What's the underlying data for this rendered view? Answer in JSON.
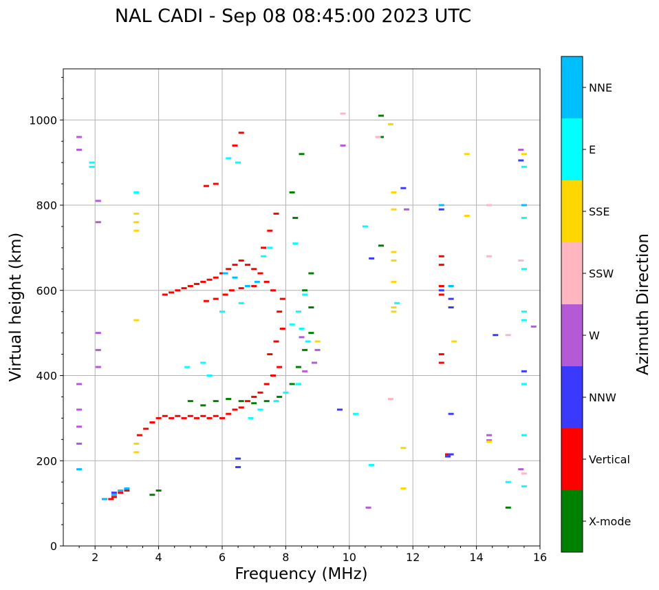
{
  "chart_data": {
    "type": "scatter",
    "title": "NAL CADI - Sep 08 08:45:00 2023 UTC",
    "xlabel": "Frequency (MHz)",
    "ylabel": "Virtual height (km)",
    "xlim": [
      1,
      16
    ],
    "ylim": [
      0,
      1120
    ],
    "xticks": [
      2,
      4,
      6,
      8,
      10,
      12,
      14,
      16
    ],
    "yticks": [
      0,
      200,
      400,
      600,
      800,
      1000
    ],
    "xtick_labels": [
      "2",
      "4",
      "6",
      "8",
      "10",
      "12",
      "14",
      "16"
    ],
    "ytick_labels": [
      "0",
      "200",
      "400",
      "600",
      "800",
      "1000"
    ],
    "grid": true,
    "colorbar": {
      "label": "Azimuth Direction",
      "position": "right",
      "categories": [
        {
          "name": "X-mode",
          "color": "#008000"
        },
        {
          "name": "Vertical",
          "color": "#ff0000"
        },
        {
          "name": "NNW",
          "color": "#3a3aff"
        },
        {
          "name": "W",
          "color": "#b45ad6"
        },
        {
          "name": "SSW",
          "color": "#ffb6c1"
        },
        {
          "name": "SSE",
          "color": "#ffd700"
        },
        {
          "name": "E",
          "color": "#00ffff"
        },
        {
          "name": "NNE",
          "color": "#00bfff"
        }
      ]
    },
    "series": [
      {
        "name": "Vertical",
        "color": "#ff0000",
        "points": [
          [
            2.3,
            110
          ],
          [
            2.5,
            110
          ],
          [
            2.6,
            115
          ],
          [
            2.8,
            125
          ],
          [
            3.0,
            130
          ],
          [
            3.4,
            260
          ],
          [
            3.6,
            275
          ],
          [
            3.8,
            290
          ],
          [
            4.0,
            300
          ],
          [
            4.2,
            305
          ],
          [
            4.4,
            300
          ],
          [
            4.6,
            305
          ],
          [
            4.8,
            300
          ],
          [
            5.0,
            305
          ],
          [
            5.2,
            300
          ],
          [
            5.4,
            305
          ],
          [
            5.6,
            300
          ],
          [
            5.8,
            305
          ],
          [
            6.0,
            300
          ],
          [
            6.2,
            310
          ],
          [
            6.4,
            320
          ],
          [
            6.6,
            325
          ],
          [
            6.8,
            340
          ],
          [
            7.0,
            350
          ],
          [
            7.2,
            360
          ],
          [
            7.4,
            380
          ],
          [
            7.6,
            400
          ],
          [
            7.8,
            420
          ],
          [
            7.5,
            450
          ],
          [
            7.7,
            480
          ],
          [
            7.9,
            510
          ],
          [
            7.8,
            550
          ],
          [
            7.9,
            580
          ],
          [
            7.6,
            600
          ],
          [
            7.4,
            620
          ],
          [
            7.2,
            640
          ],
          [
            7.0,
            650
          ],
          [
            6.8,
            660
          ],
          [
            6.6,
            670
          ],
          [
            6.4,
            660
          ],
          [
            6.2,
            650
          ],
          [
            6.0,
            640
          ],
          [
            5.8,
            630
          ],
          [
            5.6,
            625
          ],
          [
            5.4,
            620
          ],
          [
            5.2,
            615
          ],
          [
            5.0,
            610
          ],
          [
            4.8,
            605
          ],
          [
            4.6,
            600
          ],
          [
            4.4,
            595
          ],
          [
            4.2,
            590
          ],
          [
            5.5,
            575
          ],
          [
            5.8,
            580
          ],
          [
            6.1,
            590
          ],
          [
            6.3,
            600
          ],
          [
            6.6,
            605
          ],
          [
            7.0,
            610
          ],
          [
            7.3,
            700
          ],
          [
            7.5,
            740
          ],
          [
            7.7,
            780
          ],
          [
            6.4,
            940
          ],
          [
            6.6,
            970
          ],
          [
            5.5,
            845
          ],
          [
            5.8,
            850
          ],
          [
            12.9,
            680
          ],
          [
            12.9,
            660
          ],
          [
            12.9,
            610
          ],
          [
            12.9,
            590
          ],
          [
            12.9,
            450
          ],
          [
            12.9,
            430
          ],
          [
            13.1,
            215
          ]
        ]
      },
      {
        "name": "X-mode",
        "color": "#008000",
        "points": [
          [
            3.8,
            120
          ],
          [
            4.0,
            130
          ],
          [
            5.0,
            340
          ],
          [
            5.4,
            330
          ],
          [
            5.8,
            340
          ],
          [
            6.2,
            345
          ],
          [
            6.6,
            340
          ],
          [
            7.0,
            335
          ],
          [
            7.4,
            340
          ],
          [
            7.8,
            350
          ],
          [
            8.2,
            380
          ],
          [
            8.4,
            420
          ],
          [
            8.6,
            460
          ],
          [
            8.8,
            500
          ],
          [
            8.8,
            560
          ],
          [
            8.6,
            600
          ],
          [
            8.8,
            640
          ],
          [
            8.3,
            770
          ],
          [
            8.2,
            830
          ],
          [
            8.5,
            920
          ],
          [
            11.0,
            1010
          ],
          [
            11.0,
            960
          ],
          [
            11.0,
            705
          ],
          [
            15.0,
            90
          ]
        ]
      },
      {
        "name": "NNW",
        "color": "#3a3aff",
        "points": [
          [
            2.6,
            125
          ],
          [
            12.9,
            790
          ],
          [
            12.9,
            600
          ],
          [
            13.2,
            580
          ],
          [
            13.2,
            560
          ],
          [
            13.2,
            310
          ],
          [
            13.2,
            215
          ],
          [
            6.5,
            205
          ],
          [
            6.5,
            185
          ],
          [
            11.7,
            840
          ],
          [
            10.7,
            675
          ],
          [
            15.4,
            905
          ],
          [
            15.5,
            410
          ],
          [
            14.6,
            495
          ],
          [
            9.7,
            320
          ],
          [
            13.1,
            210
          ]
        ]
      },
      {
        "name": "W",
        "color": "#b45ad6",
        "points": [
          [
            1.5,
            380
          ],
          [
            1.5,
            320
          ],
          [
            1.5,
            280
          ],
          [
            1.5,
            240
          ],
          [
            1.5,
            960
          ],
          [
            1.5,
            930
          ],
          [
            2.1,
            810
          ],
          [
            2.1,
            760
          ],
          [
            2.1,
            500
          ],
          [
            2.1,
            460
          ],
          [
            2.1,
            420
          ],
          [
            9.0,
            460
          ],
          [
            8.9,
            430
          ],
          [
            8.6,
            410
          ],
          [
            15.4,
            930
          ],
          [
            14.4,
            260
          ],
          [
            14.4,
            248
          ],
          [
            10.6,
            90
          ],
          [
            9.8,
            940
          ],
          [
            11.8,
            790
          ],
          [
            15.4,
            180
          ],
          [
            15.8,
            515
          ],
          [
            8.5,
            490
          ]
        ]
      },
      {
        "name": "SSW",
        "color": "#ffb6c1",
        "points": [
          [
            9.8,
            1015
          ],
          [
            10.9,
            960
          ],
          [
            14.4,
            680
          ],
          [
            15.4,
            670
          ],
          [
            15.5,
            170
          ],
          [
            15.0,
            495
          ],
          [
            11.3,
            345
          ],
          [
            14.4,
            800
          ]
        ]
      },
      {
        "name": "SSE",
        "color": "#ffd700",
        "points": [
          [
            3.3,
            780
          ],
          [
            3.3,
            760
          ],
          [
            3.3,
            740
          ],
          [
            3.3,
            530
          ],
          [
            3.3,
            240
          ],
          [
            3.3,
            220
          ],
          [
            11.4,
            830
          ],
          [
            11.4,
            790
          ],
          [
            11.4,
            690
          ],
          [
            11.4,
            670
          ],
          [
            11.4,
            620
          ],
          [
            11.4,
            560
          ],
          [
            11.4,
            550
          ],
          [
            13.7,
            920
          ],
          [
            13.7,
            775
          ],
          [
            14.4,
            245
          ],
          [
            11.7,
            230
          ],
          [
            11.7,
            135
          ],
          [
            9.0,
            480
          ],
          [
            11.3,
            990
          ],
          [
            15.5,
            920
          ],
          [
            13.3,
            480
          ]
        ]
      },
      {
        "name": "E",
        "color": "#00ffff",
        "points": [
          [
            3.3,
            830
          ],
          [
            4.9,
            420
          ],
          [
            5.4,
            430
          ],
          [
            6.2,
            910
          ],
          [
            6.5,
            900
          ],
          [
            6.0,
            550
          ],
          [
            6.6,
            570
          ],
          [
            7.5,
            700
          ],
          [
            7.3,
            680
          ],
          [
            8.3,
            710
          ],
          [
            8.6,
            590
          ],
          [
            8.4,
            550
          ],
          [
            8.2,
            520
          ],
          [
            8.5,
            510
          ],
          [
            8.7,
            480
          ],
          [
            8.4,
            380
          ],
          [
            8.0,
            360
          ],
          [
            7.7,
            340
          ],
          [
            7.2,
            320
          ],
          [
            6.9,
            300
          ],
          [
            15.5,
            800
          ],
          [
            15.5,
            770
          ],
          [
            15.5,
            650
          ],
          [
            15.5,
            550
          ],
          [
            15.5,
            530
          ],
          [
            15.5,
            380
          ],
          [
            15.5,
            260
          ],
          [
            15.5,
            140
          ],
          [
            15.5,
            890
          ],
          [
            10.7,
            190
          ],
          [
            10.5,
            750
          ],
          [
            10.2,
            310
          ],
          [
            15.0,
            150
          ],
          [
            11.5,
            570
          ],
          [
            13.2,
            610
          ],
          [
            1.9,
            890
          ],
          [
            1.9,
            900
          ],
          [
            5.6,
            400
          ]
        ]
      },
      {
        "name": "NNE",
        "color": "#00bfff",
        "points": [
          [
            2.3,
            110
          ],
          [
            2.6,
            120
          ],
          [
            2.8,
            130
          ],
          [
            3.0,
            135
          ],
          [
            1.5,
            180
          ],
          [
            6.1,
            640
          ],
          [
            6.4,
            630
          ],
          [
            12.9,
            800
          ],
          [
            13.2,
            610
          ],
          [
            15.5,
            800
          ],
          [
            7.1,
            620
          ],
          [
            6.8,
            610
          ]
        ]
      }
    ]
  }
}
